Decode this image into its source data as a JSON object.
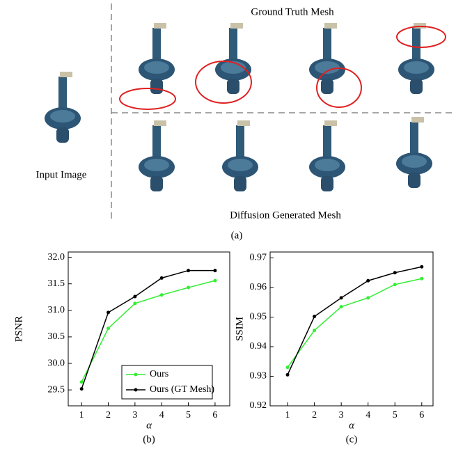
{
  "figure": {
    "top_label": "Ground Truth Mesh",
    "left_label": "Input Image",
    "bottom_label": "Diffusion Generated Mesh",
    "caption": "(a)"
  },
  "chart_data": [
    {
      "type": "line",
      "caption": "(b)",
      "ylabel": "PSNR",
      "xlabel": "α",
      "x": [
        1,
        2,
        3,
        4,
        5,
        6
      ],
      "series": [
        {
          "name": "Ours",
          "color": "#33ee33",
          "values": [
            29.65,
            30.66,
            31.13,
            31.29,
            31.43,
            31.56
          ]
        },
        {
          "name": "Ours (GT Mesh)",
          "color": "#000000",
          "values": [
            29.52,
            30.96,
            31.26,
            31.61,
            31.75,
            31.75
          ]
        }
      ],
      "xlim": [
        0.5,
        6.55
      ],
      "ylim": [
        29.2,
        32.1
      ],
      "xticks": [
        1,
        2,
        3,
        4,
        5,
        6
      ],
      "yticks": [
        29.5,
        {
          "value": 30,
          "label": "30.0"
        },
        30.5,
        {
          "value": 31,
          "label": "31.0"
        },
        31.5,
        {
          "value": 32,
          "label": "32.0"
        }
      ],
      "legend": "lower right"
    },
    {
      "type": "line",
      "caption": "(c)",
      "ylabel": "SSIM",
      "xlabel": "α",
      "x": [
        1,
        2,
        3,
        4,
        5,
        6
      ],
      "series": [
        {
          "name": "Ours",
          "color": "#33ee33",
          "values": [
            0.933,
            0.9455,
            0.9535,
            0.9565,
            0.961,
            0.963
          ]
        },
        {
          "name": "Ours (GT Mesh)",
          "color": "#000000",
          "values": [
            0.9305,
            0.9502,
            0.9565,
            0.9623,
            0.965,
            0.967
          ]
        }
      ],
      "xlim": [
        0.35,
        6.42
      ],
      "ylim": [
        0.92,
        0.972
      ],
      "xticks": [
        1,
        2,
        3,
        4,
        5,
        6
      ],
      "yticks": [
        0.92,
        0.93,
        0.94,
        0.95,
        0.96,
        0.97
      ]
    }
  ]
}
